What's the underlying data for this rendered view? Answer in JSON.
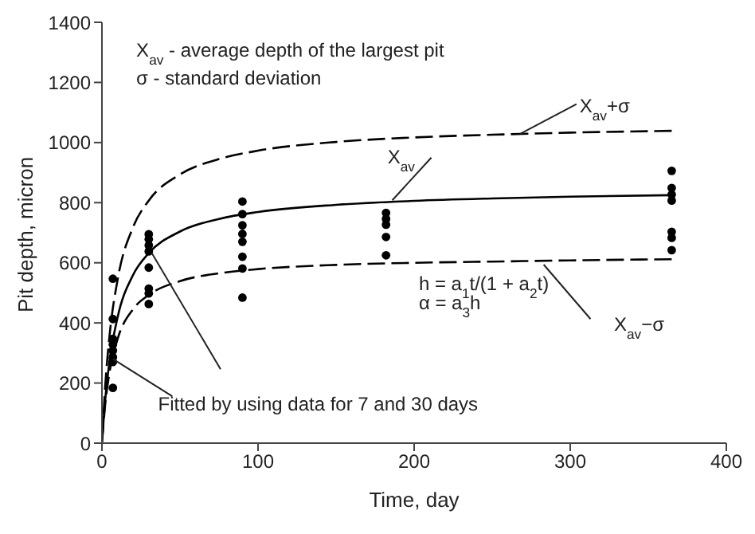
{
  "chart_data": {
    "type": "line",
    "xlabel": "Time, day",
    "ylabel": "Pit depth, micron",
    "xlim": [
      0,
      400
    ],
    "xticks": [
      0,
      100,
      200,
      300,
      400
    ],
    "ylim": [
      0,
      1400
    ],
    "yticks": [
      0,
      200,
      400,
      600,
      800,
      1000,
      1200,
      1400
    ],
    "grid": false,
    "legend": false,
    "annotations": [
      "X$_{av}$ - average depth of the largest pit",
      "σ  - standard deviation",
      "h = a$_{1}$t/(1 + a$_{2}$t)",
      "α = a$_{3}$h",
      {
        "text": "Fitted by using data for 7 and 30 days",
        "x": 7,
        "y": 280
      }
    ],
    "series": [
      {
        "name": "X$_{av}$+σ",
        "line_style": "dashed",
        "marker": "none",
        "color": "#000000",
        "x": [
          0,
          2,
          5,
          10,
          20,
          30,
          50,
          75,
          100,
          150,
          200,
          250,
          300,
          365
        ],
        "values": [
          0,
          183,
          364,
          543,
          719,
          807,
          894,
          945,
          973,
          1002,
          1017,
          1026,
          1033,
          1039
        ]
      },
      {
        "name": "X$_{av}$",
        "line_style": "solid",
        "marker": "none",
        "color": "#000000",
        "x": [
          0,
          2,
          5,
          10,
          20,
          30,
          50,
          75,
          100,
          150,
          200,
          250,
          300,
          365
        ],
        "values": [
          0,
          138,
          278,
          418,
          560,
          632,
          704,
          746,
          769,
          793,
          806,
          814,
          820,
          825
        ]
      },
      {
        "name": "X$_{av}$−σ",
        "line_style": "dashed",
        "marker": "none",
        "color": "#000000",
        "x": [
          0,
          2,
          5,
          10,
          20,
          30,
          50,
          75,
          100,
          150,
          200,
          250,
          300,
          365
        ],
        "values": [
          0,
          124,
          240,
          346,
          446,
          493,
          539,
          565,
          579,
          593,
          600,
          604,
          608,
          612
        ]
      },
      {
        "type": "scatter",
        "marker": "circle",
        "color": "#000000",
        "x": [
          7,
          7,
          7,
          7,
          7,
          7,
          7,
          7,
          30,
          30,
          30,
          30,
          30,
          30,
          30,
          30,
          90,
          90,
          90,
          90,
          90,
          90,
          90,
          90,
          182,
          182,
          182,
          182,
          182,
          365,
          365,
          365,
          365,
          365,
          365,
          365
        ],
        "values": [
          547,
          413,
          347,
          328,
          308,
          286,
          270,
          184,
          695,
          678,
          658,
          638,
          584,
          514,
          498,
          463,
          804,
          762,
          725,
          696,
          670,
          620,
          581,
          484,
          766,
          746,
          727,
          686,
          625,
          906,
          849,
          827,
          807,
          703,
          683,
          642
        ]
      }
    ]
  }
}
